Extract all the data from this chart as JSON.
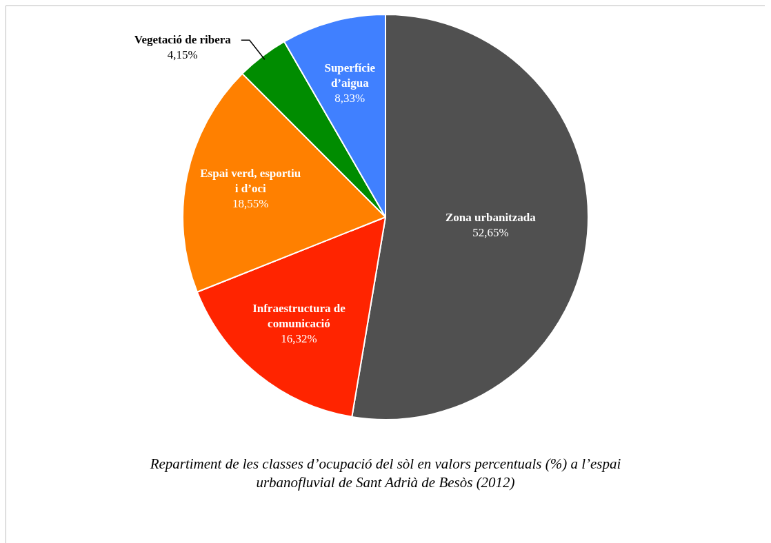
{
  "chart_data": {
    "type": "pie",
    "title": "Repartiment de les classes d’ocupació del sòl en valors percentuals (%) a l’espai urbanofluvial de Sant Adrià de Besòs (2012)",
    "categories": [
      "Zona urbanitzada",
      "Infraestructura de comunicació",
      "Espai verd, esportiu i d’oci",
      "Vegetació de ribera",
      "Superfície d’aigua"
    ],
    "values": [
      52.65,
      16.32,
      18.55,
      4.15,
      8.33
    ],
    "value_labels": [
      "52,65%",
      "16,32%",
      "18,55%",
      "4,15%",
      "8,33%"
    ],
    "colors": [
      "#505050",
      "#ff2400",
      "#ff8000",
      "#008c00",
      "#4080ff"
    ],
    "legend": false
  }
}
